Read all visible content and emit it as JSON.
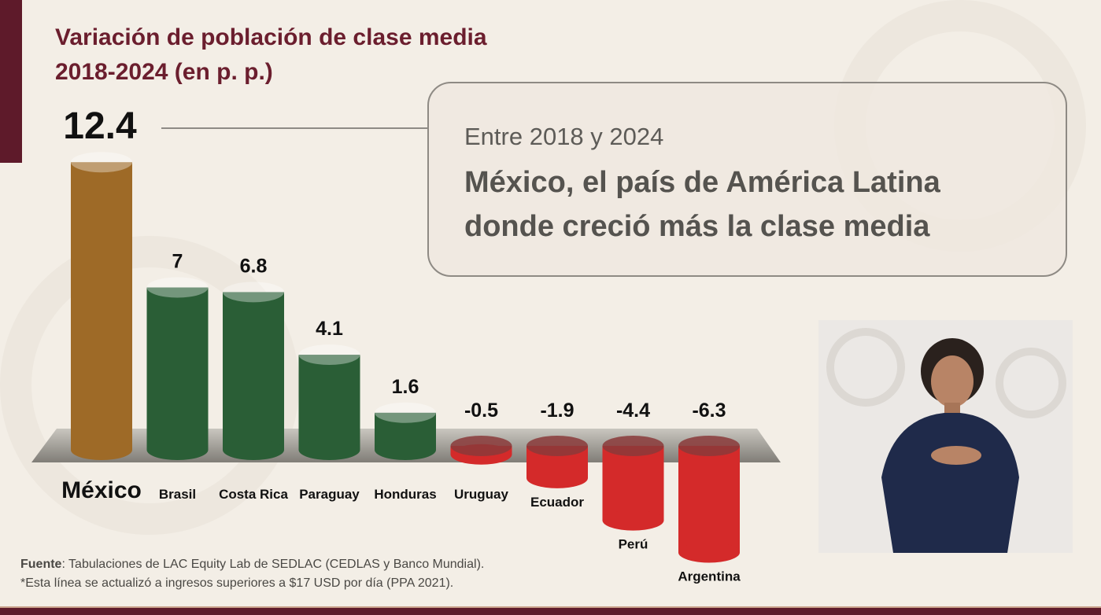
{
  "title": {
    "line1": "Variación de población de clase media",
    "line2": "2018-2024 (en p. p.)"
  },
  "callout": {
    "subtitle": "Entre 2018 y 2024",
    "headline_line1": "México, el país de América Latina",
    "headline_line2": "donde creció más la clase media"
  },
  "chart_data": {
    "type": "bar",
    "title": "Variación de población de clase media 2018-2024 (en p. p.)",
    "categories": [
      "México",
      "Brasil",
      "Costa Rica",
      "Paraguay",
      "Honduras",
      "Uruguay",
      "Ecuador",
      "Perú",
      "Argentina"
    ],
    "values": [
      12.4,
      7,
      6.8,
      4.1,
      1.6,
      -0.5,
      -1.9,
      -4.4,
      -6.3
    ],
    "value_labels": [
      "12.4",
      "7",
      "6.8",
      "4.1",
      "1.6",
      "-0.5",
      "-1.9",
      "-4.4",
      "-6.3"
    ],
    "colors": {
      "highlight": "#9e6a27",
      "positive": "#2a5e36",
      "negative": "#d42a2a"
    },
    "style": "3d-cylinders",
    "grid": false
  },
  "footnote": {
    "source_label": "Fuente",
    "source_text": ": Tabulaciones de LAC Equity Lab de SEDLAC (CEDLAS y Banco Mundial).",
    "note": "*Esta línea se actualizó a ingresos superiores a $17 USD por día (PPA 2021)."
  },
  "colors": {
    "brand": "#5e1a2a",
    "title": "#6b1e2e"
  }
}
